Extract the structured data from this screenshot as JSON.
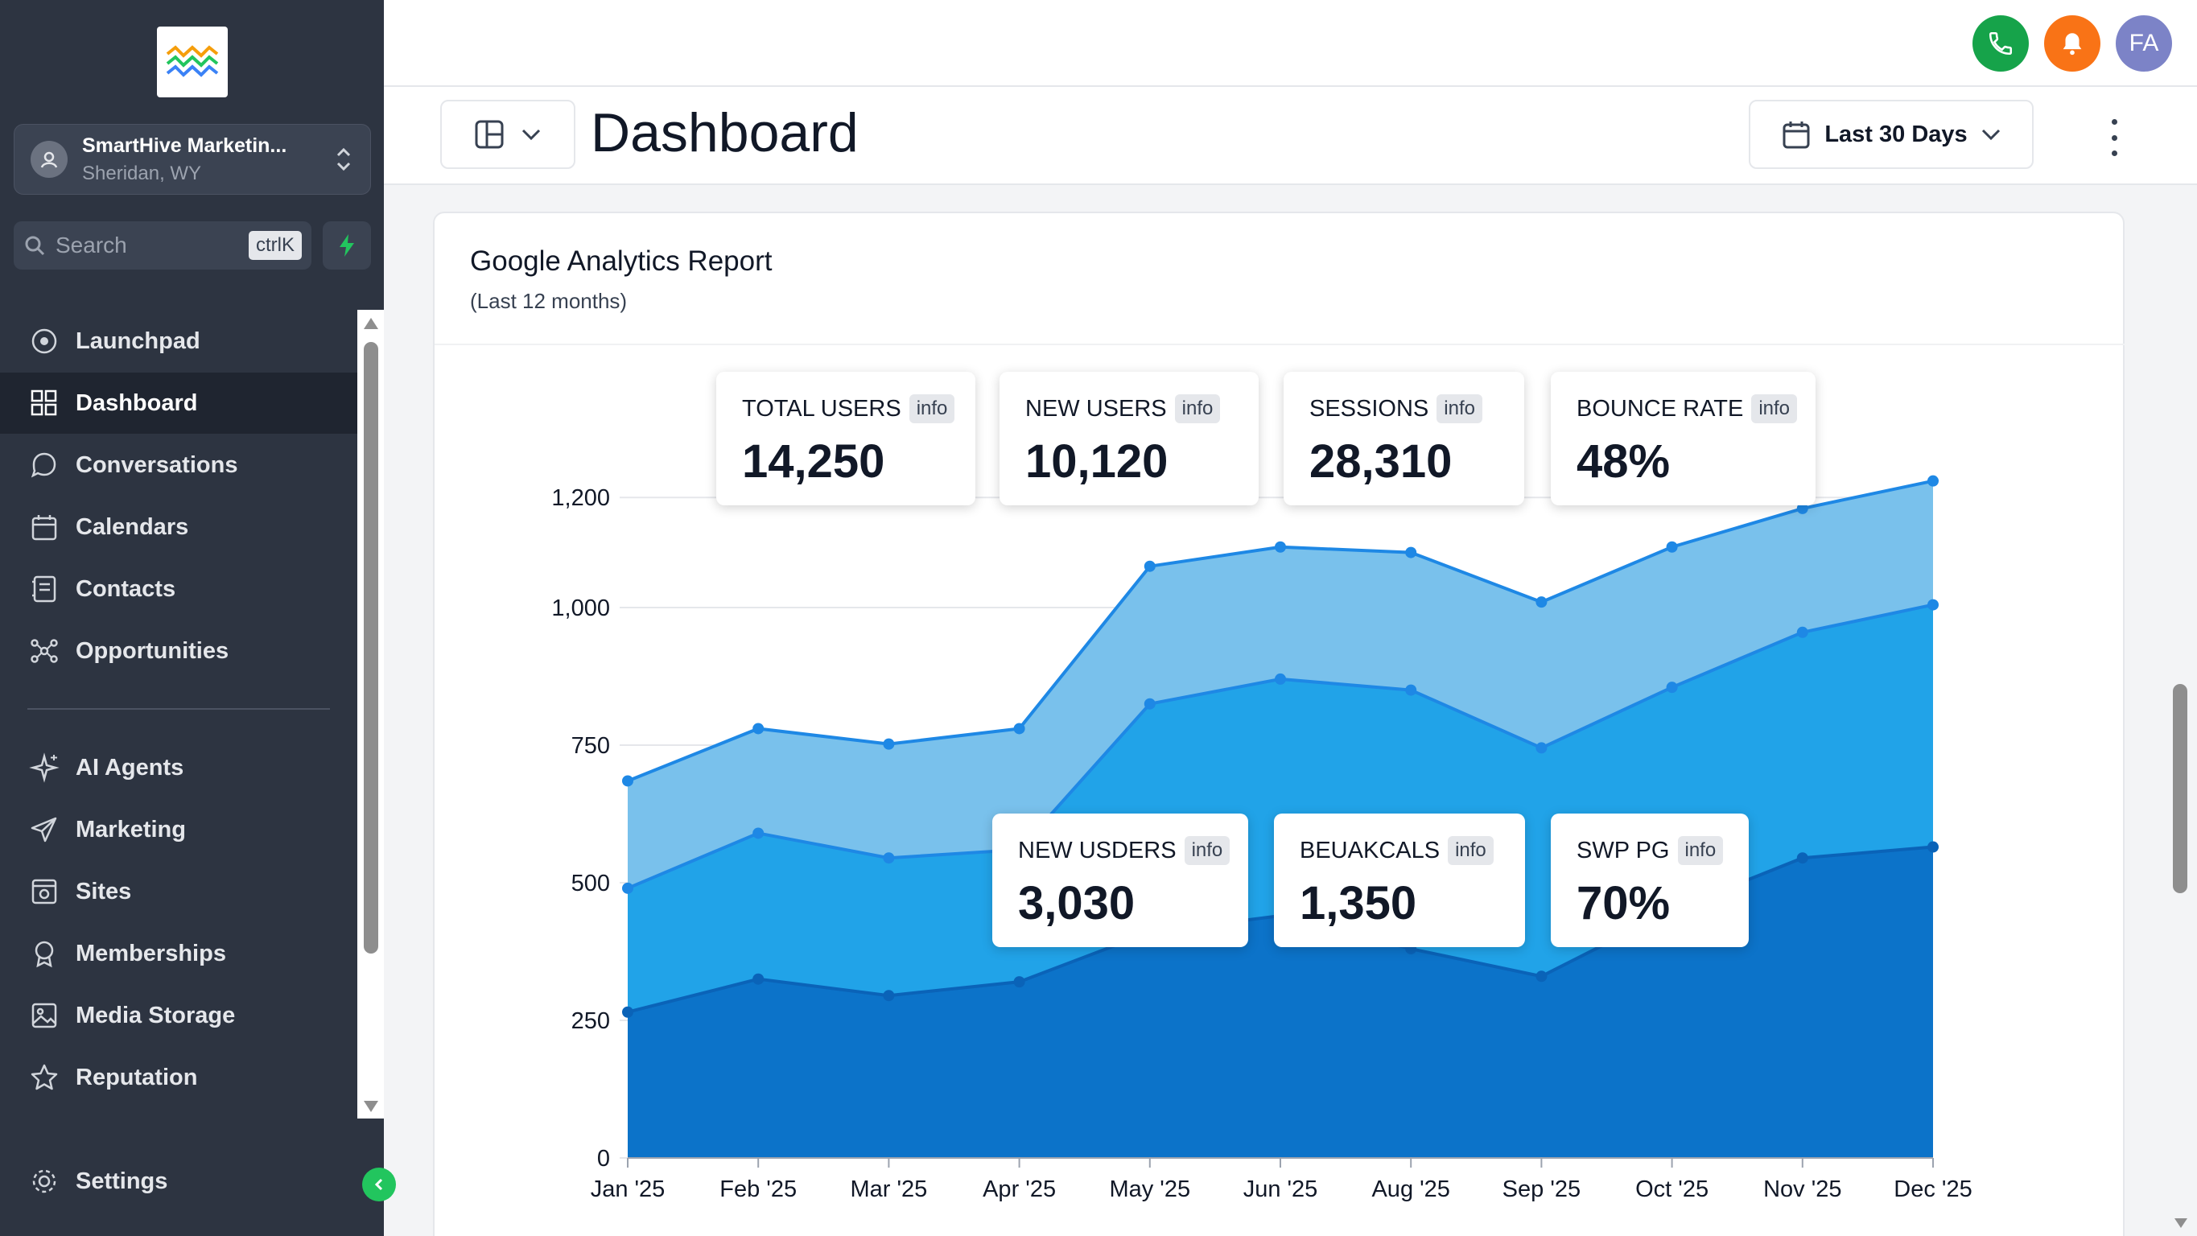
{
  "sidebar": {
    "account": {
      "name": "SmartHive Marketin...",
      "location": "Sheridan, WY"
    },
    "search": {
      "placeholder": "Search",
      "shortcut": "ctrlK"
    },
    "items": [
      {
        "label": "Launchpad",
        "icon": "launchpad-icon"
      },
      {
        "label": "Dashboard",
        "icon": "dashboard-icon",
        "active": true
      },
      {
        "label": "Conversations",
        "icon": "chat-icon"
      },
      {
        "label": "Calendars",
        "icon": "calendar-icon"
      },
      {
        "label": "Contacts",
        "icon": "contacts-icon"
      },
      {
        "label": "Opportunities",
        "icon": "opportunities-icon"
      },
      {
        "label": "AI Agents",
        "icon": "sparkle-icon"
      },
      {
        "label": "Marketing",
        "icon": "send-icon"
      },
      {
        "label": "Sites",
        "icon": "sites-icon"
      },
      {
        "label": "Memberships",
        "icon": "award-icon"
      },
      {
        "label": "Media Storage",
        "icon": "image-icon"
      },
      {
        "label": "Reputation",
        "icon": "star-icon"
      }
    ],
    "settings_label": "Settings"
  },
  "topbar": {
    "avatar_initials": "FA",
    "phone_color": "#16a34a",
    "bell_color": "#f97316",
    "avatar_color": "#7c83c7"
  },
  "header": {
    "title": "Dashboard",
    "date_range": "Last 30 Days"
  },
  "report": {
    "title": "Google Analytics Report",
    "subtitle": "(Last 12 months)",
    "metrics_top": [
      {
        "label": "TOTAL USERS",
        "info": "info",
        "value": "14,250"
      },
      {
        "label": "NEW USERS",
        "info": "info",
        "value": "10,120"
      },
      {
        "label": "SESSIONS",
        "info": "info",
        "value": "28,310"
      },
      {
        "label": "BOUNCE RATE",
        "info": "info",
        "value": "48%"
      }
    ],
    "metrics_mid": [
      {
        "label": "NEW USDERS",
        "info": "info",
        "value": "3,030"
      },
      {
        "label": "BEUAKCALS",
        "info": "info",
        "value": "1,350"
      },
      {
        "label": "SWP PG",
        "info": "info",
        "value": "70%"
      }
    ]
  },
  "chart_data": {
    "type": "area",
    "categories": [
      "Jan '25",
      "Feb '25",
      "Mar '25",
      "Apr '25",
      "May '25",
      "Jun '25",
      "Aug '25",
      "Sep '25",
      "Oct '25",
      "Nov '25",
      "Dec '25"
    ],
    "y_ticks": [
      "0",
      "250",
      "500",
      "750",
      "1,000",
      "1,200"
    ],
    "ylim": [
      0,
      1250
    ],
    "series": [
      {
        "values": [
          685,
          780,
          752,
          780,
          1075,
          1110,
          1100,
          1010,
          1110,
          1180,
          1230
        ],
        "color": "#79c1ec",
        "stroke": "#1e88e5"
      },
      {
        "values": [
          490,
          590,
          545,
          560,
          825,
          870,
          850,
          745,
          855,
          955,
          1005
        ],
        "color": "#21a3e8",
        "stroke": "#1e88e5"
      },
      {
        "values": [
          265,
          325,
          295,
          320,
          410,
          440,
          380,
          330,
          450,
          545,
          565
        ],
        "color": "#0c73c9",
        "stroke": "#0a63b8"
      }
    ]
  }
}
